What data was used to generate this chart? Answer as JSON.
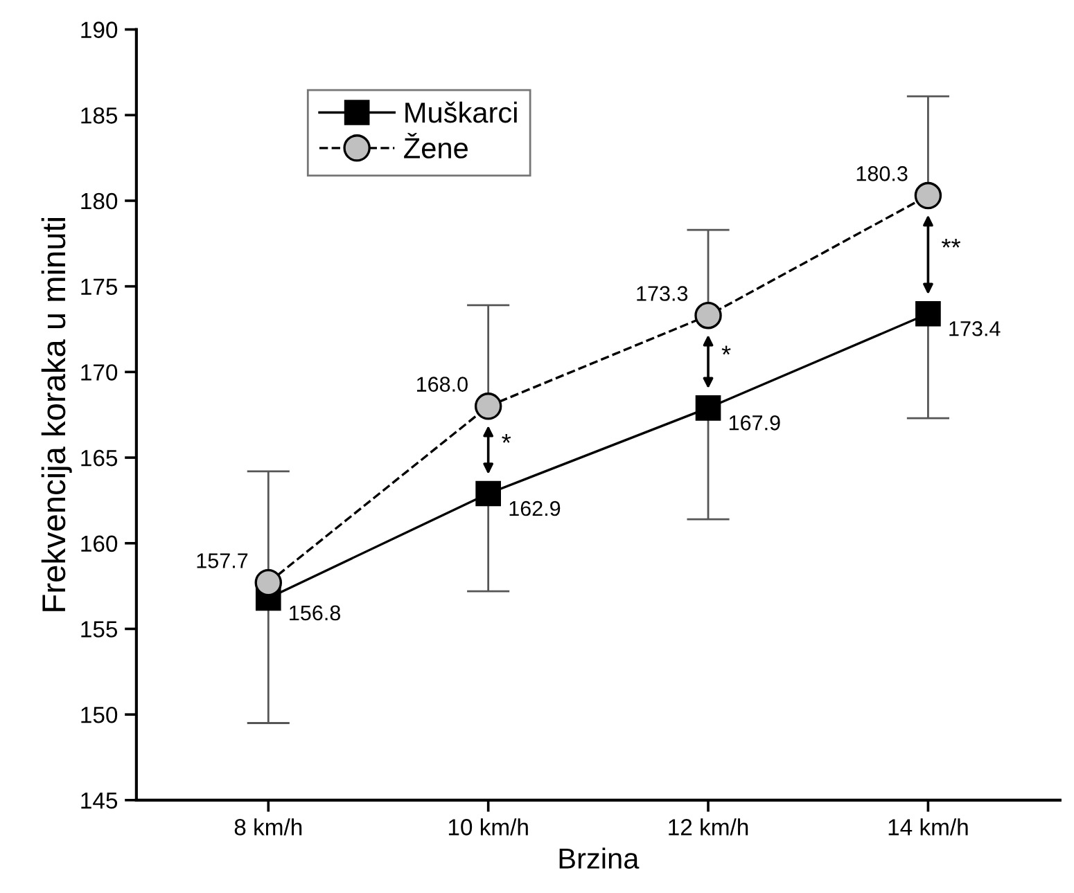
{
  "chart_data": {
    "type": "line",
    "xlabel": "Brzina",
    "ylabel": "Frekvencija koraka u minuti",
    "categories": [
      "8 km/h",
      "10 km/h",
      "12 km/h",
      "14 km/h"
    ],
    "ylim": [
      145,
      190
    ],
    "yticks": [
      145,
      150,
      155,
      160,
      165,
      170,
      175,
      180,
      185,
      190
    ],
    "grid": false,
    "legend": "top left",
    "series": [
      {
        "name": "Muškarci",
        "color": "#000000",
        "marker": "square",
        "line_style": "solid",
        "values": [
          156.8,
          162.9,
          167.9,
          173.4
        ],
        "value_labels": [
          "156.8",
          "162.9",
          "167.9",
          "173.4"
        ],
        "errors": [
          [
            149.5,
            156.8
          ],
          [
            157.2,
            162.9
          ],
          [
            161.4,
            167.9
          ],
          [
            167.3,
            173.4
          ]
        ]
      },
      {
        "name": "Žene",
        "color": "#c0c0c0",
        "marker": "circle",
        "line_style": "dashed",
        "values": [
          157.7,
          168.0,
          173.3,
          180.3
        ],
        "value_labels": [
          "157.7",
          "168.0",
          "173.3",
          "180.3"
        ],
        "errors": [
          [
            157.7,
            164.2
          ],
          [
            168.0,
            173.9
          ],
          [
            173.3,
            178.3
          ],
          [
            180.3,
            186.1
          ]
        ]
      }
    ],
    "annotations": [
      "*",
      "*",
      "**"
    ]
  }
}
